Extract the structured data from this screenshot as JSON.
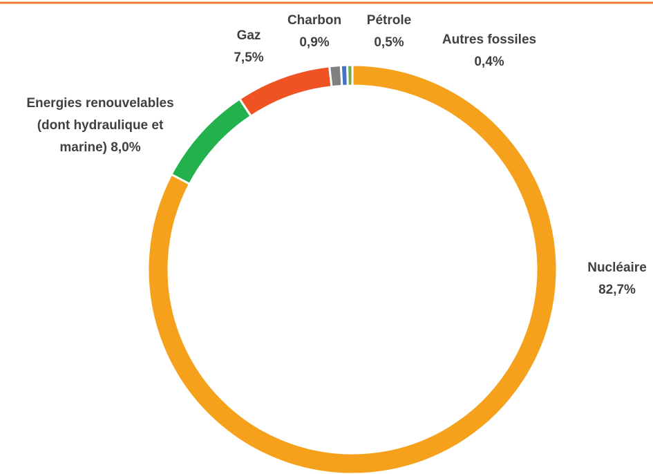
{
  "chart_data": {
    "type": "donut",
    "categories": [
      "Nucléaire",
      "Energies renouvelables (dont hydraulique et marine)",
      "Gaz",
      "Charbon",
      "Pétrole",
      "Autres fossiles"
    ],
    "values": [
      82.7,
      8.0,
      7.5,
      0.9,
      0.5,
      0.4
    ],
    "value_labels": [
      "82,7%",
      "8,0%",
      "7,5%",
      "0,9%",
      "0,5%",
      "0,4%"
    ],
    "colors": [
      "#f5a11c",
      "#23b14d",
      "#f05323",
      "#808080",
      "#4472c4",
      "#70ad47"
    ]
  }
}
